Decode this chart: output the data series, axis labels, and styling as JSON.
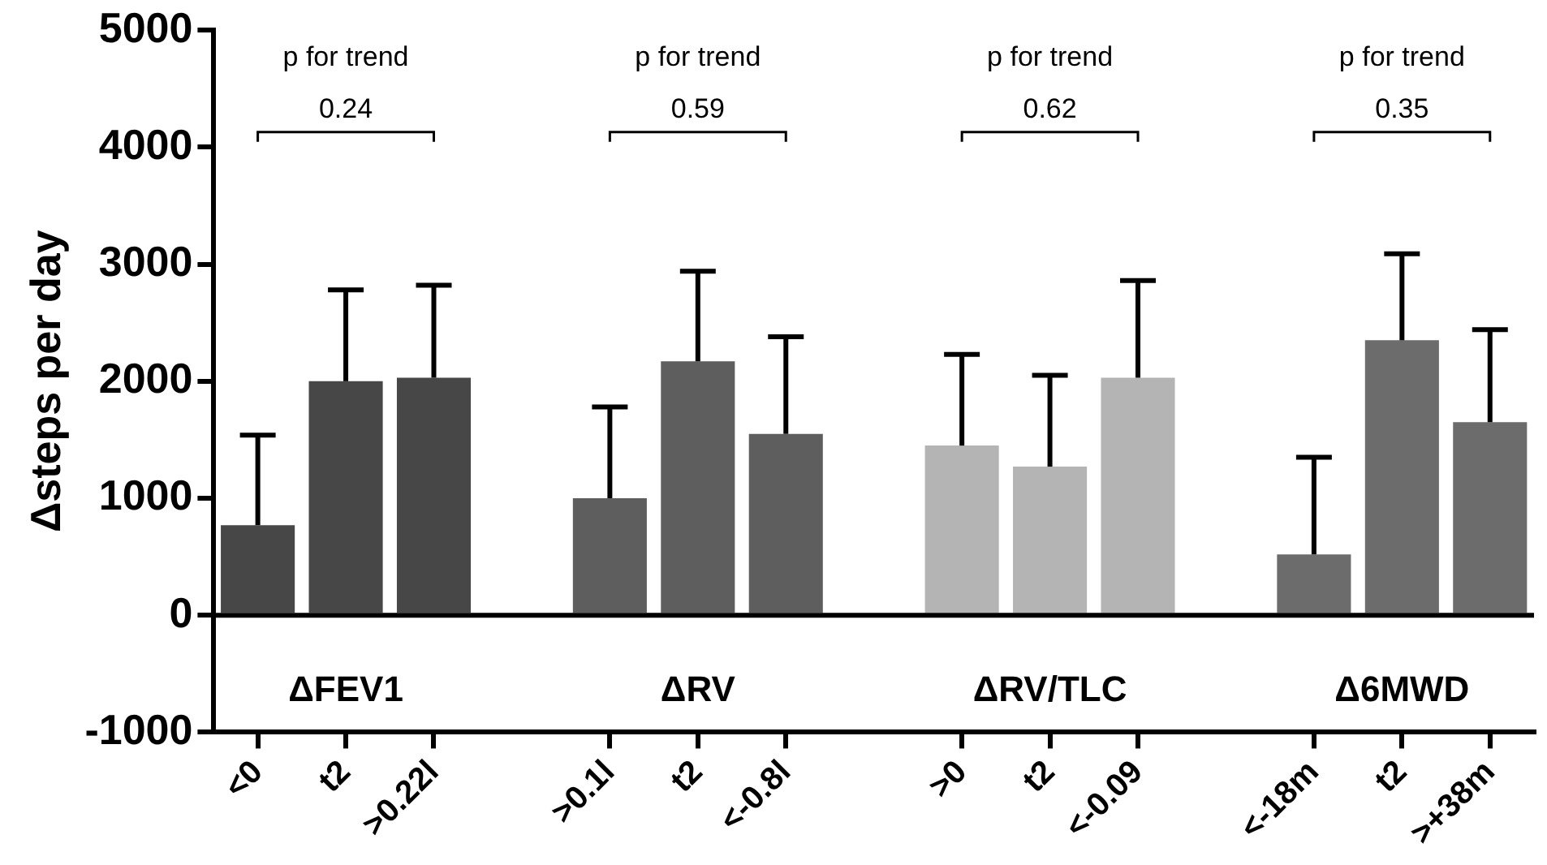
{
  "chart_data": {
    "type": "bar",
    "ylabel": "Δsteps per day",
    "categories": [
      "<0",
      "t2",
      ">0.22l",
      null,
      ">0.1l",
      "t2",
      "<-0.8l",
      null,
      ">0",
      "t2",
      "<-0.09",
      null,
      "<-18m",
      "t2",
      ">+38m"
    ],
    "values": [
      770,
      2000,
      2030,
      null,
      1000,
      2170,
      1550,
      null,
      1450,
      1270,
      2030,
      null,
      520,
      2350,
      1650
    ],
    "errors": [
      [
        770,
        1540
      ],
      [
        2000,
        2780
      ],
      [
        2030,
        2820
      ],
      null,
      [
        1000,
        1780
      ],
      [
        2170,
        2940
      ],
      [
        1550,
        2380
      ],
      null,
      [
        1450,
        2230
      ],
      [
        1270,
        2050
      ],
      [
        2030,
        2860
      ],
      null,
      [
        520,
        1350
      ],
      [
        2350,
        3090
      ],
      [
        1650,
        2440
      ]
    ],
    "colors": [
      "#474747",
      "#474747",
      "#474747",
      null,
      "#5e5e5e",
      "#5e5e5e",
      "#5e5e5e",
      null,
      "#b4b4b4",
      "#b4b4b4",
      "#b4b4b4",
      null,
      "#6c6c6c",
      "#6c6c6c",
      "#6c6c6c"
    ],
    "ylim": [
      -1000,
      5000
    ],
    "yticks": [
      -1000,
      0,
      1000,
      2000,
      3000,
      4000,
      5000
    ],
    "ref_lines": [
      {
        "axis": "y",
        "value": 0,
        "color": "#000000"
      }
    ],
    "annotations": [
      "p for trend",
      "0.24",
      "p for trend",
      "0.59",
      "p for trend",
      "0.62",
      "p for trend",
      "0.35",
      "ΔFEV1",
      "ΔRV",
      "ΔRV/TLC",
      "Δ6MWD"
    ],
    "grid": false,
    "legend": false
  }
}
